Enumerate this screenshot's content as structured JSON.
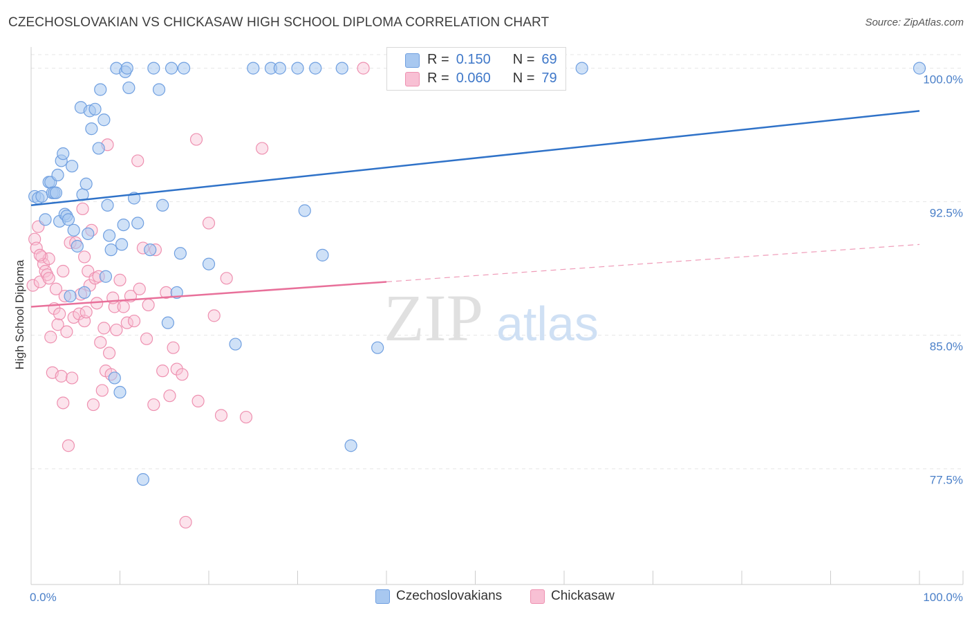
{
  "title": "CZECHOSLOVAKIAN VS CHICKASAW HIGH SCHOOL DIPLOMA CORRELATION CHART",
  "source": "Source: ZipAtlas.com",
  "legend_top": {
    "rows": [
      {
        "r_label": "R =",
        "r_value": "0.150",
        "n_label": "N =",
        "n_value": "69"
      },
      {
        "r_label": "R =",
        "r_value": "0.060",
        "n_label": "N =",
        "n_value": "79"
      }
    ]
  },
  "legend_bottom": [
    "Czechoslovakians",
    "Chickasaw"
  ],
  "watermark": {
    "zip": "ZIP",
    "atlas": "atlas"
  },
  "colors": {
    "blue_fill": "#a8c8f0",
    "blue_stroke": "#6f9fe0",
    "blue_line": "#2f72c8",
    "pink_fill": "#f8c0d4",
    "pink_stroke": "#ee90b0",
    "pink_line": "#e8709a",
    "axis_label": "#4a7fc8",
    "grid": "#e6e6e6"
  },
  "chart_data": {
    "type": "scatter",
    "title": "CZECHOSLOVAKIAN VS CHICKASAW HIGH SCHOOL DIPLOMA CORRELATION CHART",
    "xlabel": "",
    "ylabel": "High School Diploma",
    "xlim": [
      0,
      100
    ],
    "ylim": [
      71,
      101.5
    ],
    "x_tick_labels": [
      "0.0%",
      "100.0%"
    ],
    "y_ticks": [
      77.5,
      85.0,
      92.5,
      100.0
    ],
    "y_tick_labels": [
      "77.5%",
      "85.0%",
      "92.5%",
      "100.0%"
    ],
    "series": [
      {
        "name": "Czechoslovakians",
        "R": 0.15,
        "N": 69,
        "trend": {
          "x": [
            0,
            100
          ],
          "y": [
            92.3,
            97.6
          ],
          "dashed_from": null
        },
        "points": [
          [
            0.4,
            92.8
          ],
          [
            0.8,
            92.7
          ],
          [
            1.2,
            92.8
          ],
          [
            1.6,
            91.5
          ],
          [
            2.0,
            93.6
          ],
          [
            2.2,
            93.6
          ],
          [
            2.4,
            93.0
          ],
          [
            2.6,
            93.0
          ],
          [
            2.8,
            93.0
          ],
          [
            3.0,
            94.0
          ],
          [
            3.2,
            91.4
          ],
          [
            3.4,
            94.8
          ],
          [
            3.6,
            95.2
          ],
          [
            3.8,
            91.8
          ],
          [
            4.0,
            91.7
          ],
          [
            4.2,
            91.5
          ],
          [
            4.4,
            87.2
          ],
          [
            4.6,
            94.5
          ],
          [
            4.8,
            90.9
          ],
          [
            5.2,
            90.0
          ],
          [
            5.6,
            97.8
          ],
          [
            5.8,
            92.9
          ],
          [
            6.0,
            87.4
          ],
          [
            6.2,
            93.5
          ],
          [
            6.4,
            90.7
          ],
          [
            6.6,
            97.6
          ],
          [
            6.8,
            96.6
          ],
          [
            7.2,
            97.7
          ],
          [
            7.6,
            95.5
          ],
          [
            7.8,
            98.8
          ],
          [
            8.2,
            97.1
          ],
          [
            8.4,
            88.3
          ],
          [
            8.6,
            92.3
          ],
          [
            8.8,
            90.6
          ],
          [
            9.0,
            89.8
          ],
          [
            9.4,
            82.6
          ],
          [
            9.6,
            100.0
          ],
          [
            10.0,
            81.8
          ],
          [
            10.2,
            90.1
          ],
          [
            10.4,
            91.2
          ],
          [
            10.6,
            99.8
          ],
          [
            10.8,
            100.0
          ],
          [
            11.0,
            98.9
          ],
          [
            11.6,
            92.7
          ],
          [
            12.0,
            91.3
          ],
          [
            12.6,
            76.9
          ],
          [
            13.4,
            89.8
          ],
          [
            13.8,
            100.0
          ],
          [
            14.4,
            98.8
          ],
          [
            14.8,
            92.3
          ],
          [
            15.4,
            85.7
          ],
          [
            15.8,
            100.0
          ],
          [
            16.4,
            87.4
          ],
          [
            16.8,
            89.6
          ],
          [
            17.2,
            100.0
          ],
          [
            20.0,
            89.0
          ],
          [
            23.0,
            84.5
          ],
          [
            25.0,
            100.0
          ],
          [
            27.0,
            100.0
          ],
          [
            28.0,
            100.0
          ],
          [
            30.0,
            100.0
          ],
          [
            30.8,
            92.0
          ],
          [
            32.0,
            100.0
          ],
          [
            32.8,
            89.5
          ],
          [
            35.0,
            100.0
          ],
          [
            36.0,
            78.8
          ],
          [
            39.0,
            84.3
          ],
          [
            62.0,
            100.0
          ],
          [
            100.0,
            100.0
          ]
        ]
      },
      {
        "name": "Chickasaw",
        "R": 0.06,
        "N": 79,
        "trend": {
          "x": [
            0,
            100
          ],
          "y": [
            86.6,
            90.1
          ],
          "dashed_from": 40
        },
        "points": [
          [
            0.2,
            87.8
          ],
          [
            0.4,
            90.4
          ],
          [
            0.6,
            89.9
          ],
          [
            0.8,
            91.1
          ],
          [
            1.0,
            88.0
          ],
          [
            1.2,
            89.4
          ],
          [
            1.4,
            89.0
          ],
          [
            1.6,
            88.6
          ],
          [
            1.8,
            88.4
          ],
          [
            2.0,
            89.3
          ],
          [
            2.2,
            84.9
          ],
          [
            2.4,
            82.9
          ],
          [
            2.6,
            86.5
          ],
          [
            2.8,
            87.6
          ],
          [
            3.0,
            85.6
          ],
          [
            3.2,
            86.2
          ],
          [
            3.4,
            82.7
          ],
          [
            3.6,
            81.2
          ],
          [
            3.8,
            87.2
          ],
          [
            4.0,
            85.2
          ],
          [
            4.2,
            78.8
          ],
          [
            4.4,
            90.2
          ],
          [
            4.6,
            82.6
          ],
          [
            4.8,
            86.0
          ],
          [
            5.0,
            90.2
          ],
          [
            5.4,
            86.2
          ],
          [
            5.6,
            87.3
          ],
          [
            5.8,
            92.1
          ],
          [
            6.0,
            85.8
          ],
          [
            6.2,
            86.3
          ],
          [
            6.4,
            88.6
          ],
          [
            6.6,
            87.8
          ],
          [
            6.8,
            90.9
          ],
          [
            7.0,
            81.1
          ],
          [
            7.2,
            88.2
          ],
          [
            7.4,
            86.8
          ],
          [
            7.6,
            88.3
          ],
          [
            7.8,
            84.6
          ],
          [
            8.0,
            81.9
          ],
          [
            8.2,
            85.4
          ],
          [
            8.4,
            83.0
          ],
          [
            8.6,
            95.7
          ],
          [
            8.8,
            84.0
          ],
          [
            9.0,
            82.8
          ],
          [
            9.4,
            86.6
          ],
          [
            9.6,
            85.3
          ],
          [
            10.0,
            88.1
          ],
          [
            10.4,
            86.6
          ],
          [
            10.8,
            85.7
          ],
          [
            11.2,
            87.2
          ],
          [
            11.6,
            85.8
          ],
          [
            12.0,
            94.8
          ],
          [
            12.2,
            87.6
          ],
          [
            12.6,
            89.9
          ],
          [
            13.0,
            84.8
          ],
          [
            13.2,
            86.7
          ],
          [
            13.8,
            81.1
          ],
          [
            14.0,
            89.8
          ],
          [
            14.8,
            83.0
          ],
          [
            15.2,
            87.4
          ],
          [
            15.6,
            81.6
          ],
          [
            16.0,
            84.3
          ],
          [
            16.4,
            83.1
          ],
          [
            17.0,
            82.8
          ],
          [
            17.4,
            74.5
          ],
          [
            18.6,
            96.0
          ],
          [
            18.8,
            81.3
          ],
          [
            20.0,
            91.3
          ],
          [
            20.6,
            86.1
          ],
          [
            21.4,
            80.5
          ],
          [
            22.0,
            88.2
          ],
          [
            24.2,
            80.4
          ],
          [
            26.0,
            95.5
          ],
          [
            37.4,
            100.0
          ],
          [
            1.0,
            89.5
          ],
          [
            2.0,
            88.2
          ],
          [
            3.6,
            88.6
          ],
          [
            6.0,
            89.4
          ],
          [
            9.2,
            87.1
          ]
        ]
      }
    ]
  }
}
